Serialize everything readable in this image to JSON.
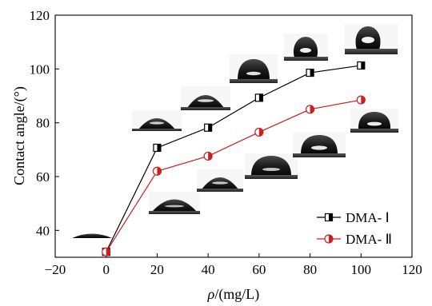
{
  "chart_data": {
    "type": "line",
    "xlabel_italic": "ρ",
    "xlabel_rest": "/(mg/L)",
    "ylabel": "Contact angle/(°)",
    "xlim": [
      -20,
      120
    ],
    "ylim": [
      30,
      120
    ],
    "x_ticks": [
      -20,
      0,
      20,
      40,
      60,
      80,
      100,
      120
    ],
    "y_ticks": [
      40,
      60,
      80,
      100,
      120
    ],
    "x_tick_labels": [
      "−20",
      "0",
      "20",
      "40",
      "60",
      "80",
      "100",
      "120"
    ],
    "y_tick_labels": [
      "40",
      "60",
      "80",
      "100",
      "120"
    ],
    "grid": false,
    "legend_position": "lower-right",
    "series": [
      {
        "name": "DMA- Ⅰ",
        "marker": "half-filled-square",
        "color": "#000000",
        "x": [
          0,
          20,
          40,
          60,
          80,
          100
        ],
        "y": [
          32,
          70.7,
          78.2,
          89.3,
          98.6,
          101.3
        ]
      },
      {
        "name": "DMA- Ⅱ",
        "marker": "half-filled-circle",
        "color": "#cc1f1f",
        "x": [
          0,
          20,
          40,
          60,
          80,
          100
        ],
        "y": [
          32,
          62.0,
          67.6,
          76.5,
          85.0,
          88.5
        ]
      }
    ],
    "droplet_images": 11
  }
}
